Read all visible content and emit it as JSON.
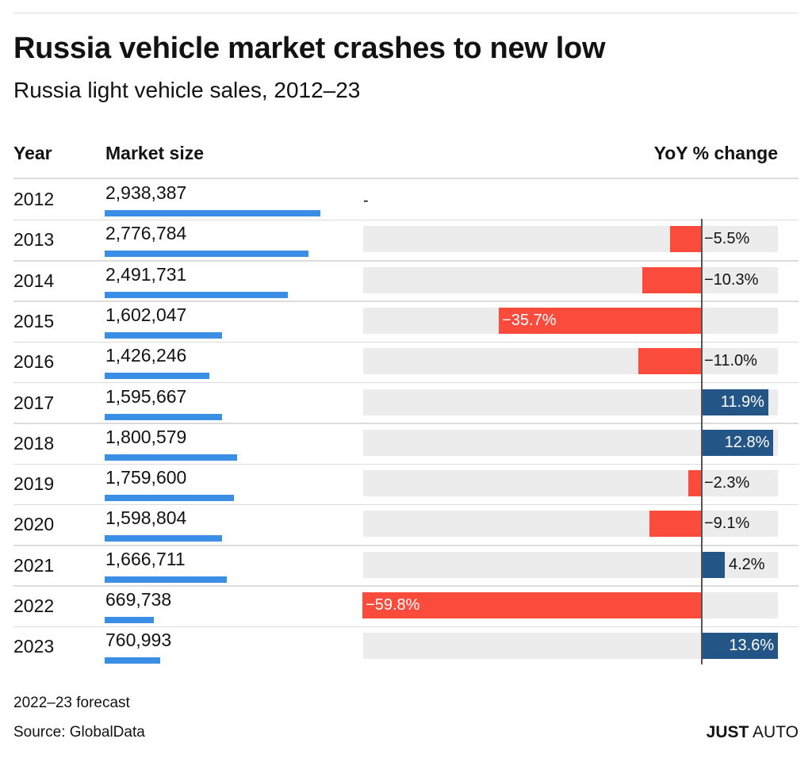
{
  "title": "Russia vehicle market crashes to new low",
  "subtitle": "Russia light vehicle sales, 2012–23",
  "headers": {
    "year": "Year",
    "market": "Market size",
    "yoy": "YoY % change"
  },
  "footer": {
    "note": "2022–23 forecast",
    "source": "Source: GlobalData",
    "brand_bold": "JUST",
    "brand_light": "AUTO"
  },
  "colors": {
    "market_bar": "#3a8ee6",
    "negative": "#fa4b3c",
    "positive": "#245587",
    "track": "#ececec"
  },
  "chart_data": {
    "type": "table",
    "title": "Russia vehicle market crashes to new low",
    "subtitle": "Russia light vehicle sales, 2012–23",
    "columns": [
      "Year",
      "Market size",
      "YoY % change"
    ],
    "rows": [
      {
        "year": "2012",
        "market_label": "2,938,387",
        "market": 2938387,
        "yoy": null,
        "yoy_label": "-"
      },
      {
        "year": "2013",
        "market_label": "2,776,784",
        "market": 2776784,
        "yoy": -5.5,
        "yoy_label": "−5.5%"
      },
      {
        "year": "2014",
        "market_label": "2,491,731",
        "market": 2491731,
        "yoy": -10.3,
        "yoy_label": "−10.3%"
      },
      {
        "year": "2015",
        "market_label": "1,602,047",
        "market": 1602047,
        "yoy": -35.7,
        "yoy_label": "−35.7%"
      },
      {
        "year": "2016",
        "market_label": "1,426,246",
        "market": 1426246,
        "yoy": -11.0,
        "yoy_label": "−11.0%"
      },
      {
        "year": "2017",
        "market_label": "1,595,667",
        "market": 1595667,
        "yoy": 11.9,
        "yoy_label": "11.9%"
      },
      {
        "year": "2018",
        "market_label": "1,800,579",
        "market": 1800579,
        "yoy": 12.8,
        "yoy_label": "12.8%"
      },
      {
        "year": "2019",
        "market_label": "1,759,600",
        "market": 1759600,
        "yoy": -2.3,
        "yoy_label": "−2.3%"
      },
      {
        "year": "2020",
        "market_label": "1,598,804",
        "market": 1598804,
        "yoy": -9.1,
        "yoy_label": "−9.1%"
      },
      {
        "year": "2021",
        "market_label": "1,666,711",
        "market": 1666711,
        "yoy": 4.2,
        "yoy_label": "4.2%"
      },
      {
        "year": "2022",
        "market_label": "669,738",
        "market": 669738,
        "yoy": -59.8,
        "yoy_label": "−59.8%"
      },
      {
        "year": "2023",
        "market_label": "760,993",
        "market": 760993,
        "yoy": 13.6,
        "yoy_label": "13.6%"
      }
    ],
    "yoy_range": [
      -59.8,
      13.6
    ]
  }
}
